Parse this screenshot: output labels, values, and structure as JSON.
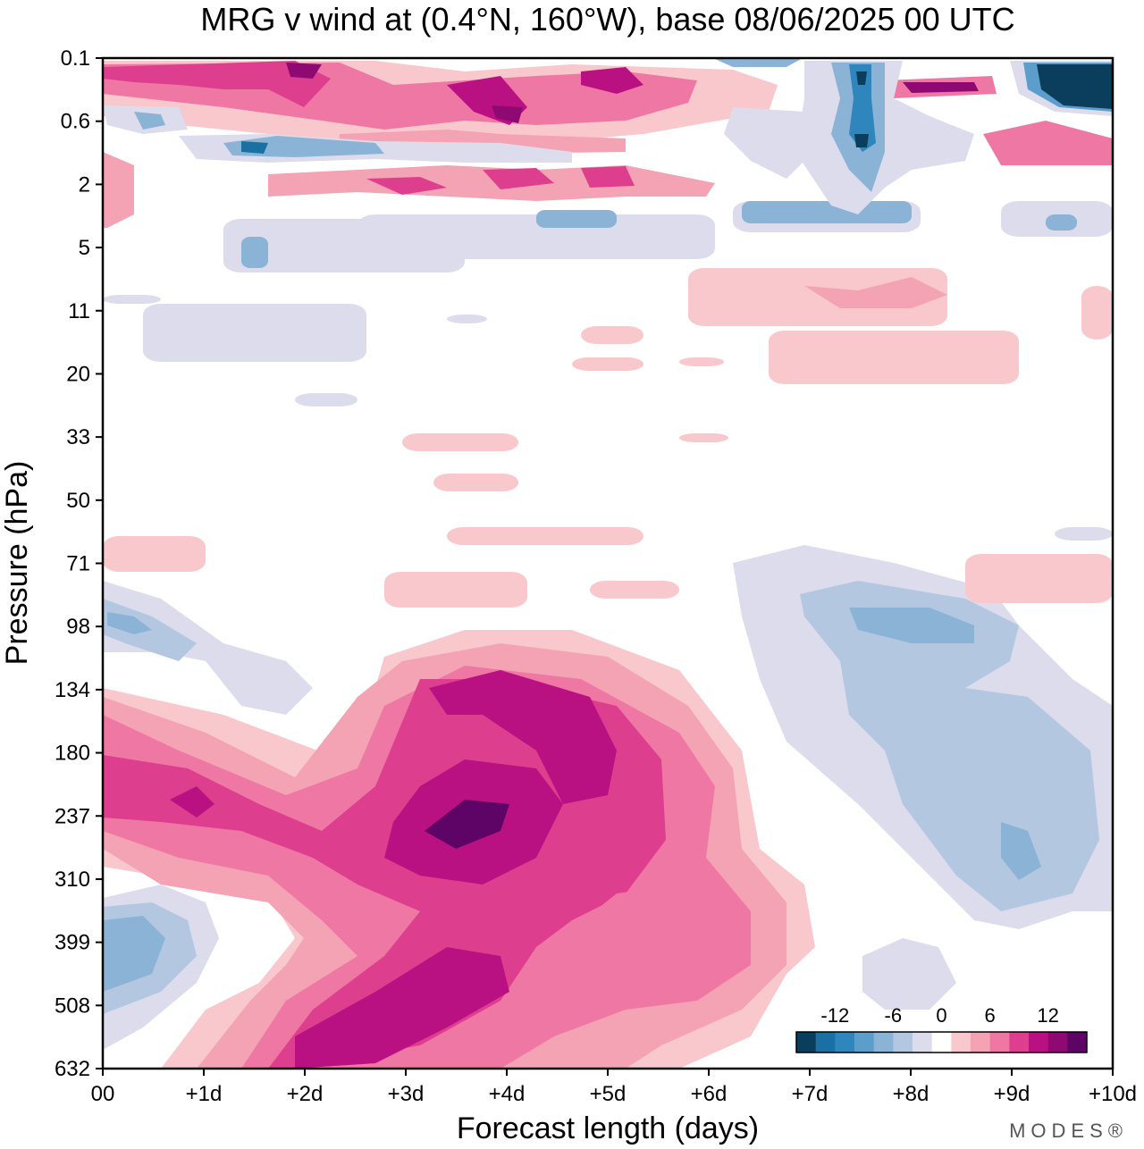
{
  "chart_data": {
    "type": "heatmap",
    "title": "MRG v wind at (0.4°N, 160°W),  base 08/06/2025  00 UTC",
    "xlabel": "Forecast length (days)",
    "ylabel": "Pressure (hPa)",
    "x_ticks": [
      "00",
      "+1d",
      "+2d",
      "+3d",
      "+4d",
      "+5d",
      "+6d",
      "+7d",
      "+8d",
      "+9d",
      "+10d"
    ],
    "xlim_days": [
      0,
      10
    ],
    "y_ticks": [
      "0.1",
      "0.6",
      "2",
      "5",
      "11",
      "20",
      "33",
      "50",
      "71",
      "98",
      "134",
      "180",
      "237",
      "310",
      "399",
      "508",
      "632"
    ],
    "y_scale": "log pressure, decreasing upward",
    "colorbar": {
      "tick_labels": [
        "-12",
        "-6",
        "0",
        "6",
        "12"
      ],
      "levels": [
        -14,
        -12,
        -10,
        -8,
        -6,
        -4,
        -2,
        2,
        4,
        6,
        8,
        10,
        12,
        14
      ],
      "colors": [
        "#0b3d5c",
        "#1a6fa3",
        "#2f86bd",
        "#5c9ecb",
        "#8bb3d6",
        "#b3c7e0",
        "#dcdcec",
        "#ffffff",
        "#f8c8cc",
        "#f4a3b4",
        "#ee78a3",
        "#dd3f8e",
        "#ba1182",
        "#8e0a72",
        "#5e0466"
      ],
      "placement": "bottom-right inside plot"
    },
    "features": [
      {
        "region": "upper troposphere 134-632 hPa, days 0-6",
        "sign": "positive",
        "peak": 14,
        "peak_at": {
          "day": 3.5,
          "hPa": 237
        }
      },
      {
        "region": "days 4.5-6, 399 hPa",
        "sign": "positive",
        "peak": 12
      },
      {
        "region": "days 3-5, 134-180 hPa",
        "sign": "positive",
        "peak": 12
      },
      {
        "region": "days 6.5-10, 71-508 hPa",
        "sign": "negative",
        "peak": -6
      },
      {
        "region": "days 0-1, 310-632 hPa",
        "sign": "negative",
        "peak": -6
      },
      {
        "region": "stratosphere 0.1-5 hPa",
        "sign": "mixed",
        "peak": -14,
        "peak_at": {
          "day": 9.7,
          "hPa": 0.3
        }
      }
    ]
  },
  "branding": {
    "logo": "MODES®"
  }
}
